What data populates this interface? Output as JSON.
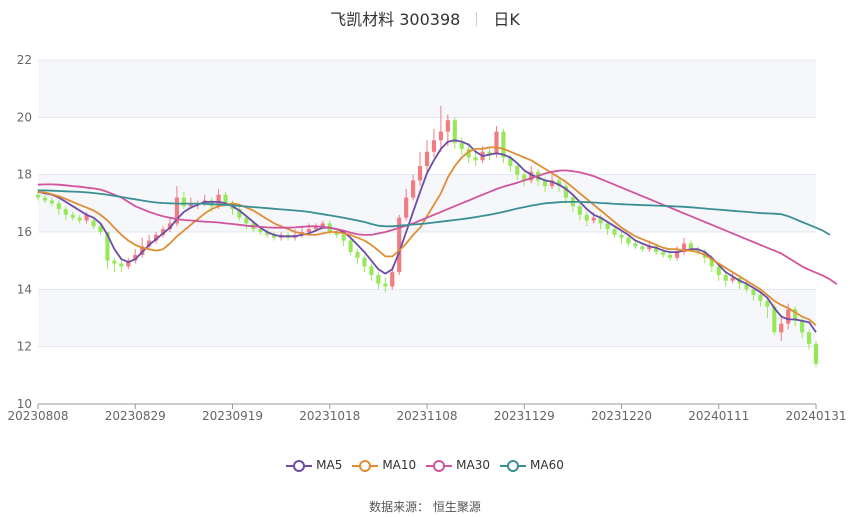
{
  "title": {
    "name": "飞凯材料 300398",
    "period": "日K"
  },
  "source": "数据来源： 恒生聚源",
  "chart_data": {
    "type": "candlestick",
    "y_ticks": [
      "10",
      "12",
      "14",
      "16",
      "18",
      "20",
      "22"
    ],
    "ylim": [
      10,
      22
    ],
    "x_ticks": [
      "20230808",
      "20230829",
      "20230919",
      "20231018",
      "20231108",
      "20231129",
      "20231220",
      "20240111",
      "20240131"
    ],
    "grid": true,
    "legend_position": "bottom",
    "up_color": "#f07c82",
    "down_color": "#96e85a",
    "candles": [
      [
        17.3,
        17.2,
        17.5,
        17.1
      ],
      [
        17.2,
        17.1,
        17.3,
        17.0
      ],
      [
        17.1,
        17.0,
        17.2,
        16.9
      ],
      [
        17.0,
        16.8,
        17.1,
        16.6
      ],
      [
        16.8,
        16.6,
        16.9,
        16.4
      ],
      [
        16.6,
        16.5,
        16.7,
        16.4
      ],
      [
        16.5,
        16.4,
        16.6,
        16.3
      ],
      [
        16.4,
        16.6,
        16.7,
        16.3
      ],
      [
        16.4,
        16.2,
        16.5,
        16.1
      ],
      [
        16.2,
        16.0,
        16.3,
        15.9
      ],
      [
        16.0,
        15.0,
        16.0,
        14.7
      ],
      [
        15.0,
        14.9,
        15.1,
        14.6
      ],
      [
        14.9,
        14.8,
        15.0,
        14.6
      ],
      [
        14.8,
        15.0,
        15.1,
        14.7
      ],
      [
        15.0,
        15.2,
        15.4,
        14.9
      ],
      [
        15.2,
        15.5,
        15.8,
        15.1
      ],
      [
        15.5,
        15.7,
        15.9,
        15.4
      ],
      [
        15.7,
        15.9,
        16.0,
        15.6
      ],
      [
        15.9,
        16.1,
        16.2,
        15.8
      ],
      [
        16.1,
        16.3,
        16.5,
        16.0
      ],
      [
        16.3,
        17.2,
        17.6,
        16.2
      ],
      [
        17.2,
        16.9,
        17.4,
        16.8
      ],
      [
        16.9,
        17.0,
        17.2,
        16.8
      ],
      [
        17.0,
        17.0,
        17.1,
        16.8
      ],
      [
        17.0,
        17.1,
        17.3,
        16.9
      ],
      [
        17.1,
        16.9,
        17.2,
        16.7
      ],
      [
        16.9,
        17.3,
        17.5,
        16.8
      ],
      [
        17.3,
        17.0,
        17.4,
        16.9
      ],
      [
        17.0,
        16.8,
        17.1,
        16.6
      ],
      [
        16.8,
        16.5,
        16.9,
        16.4
      ],
      [
        16.5,
        16.3,
        16.6,
        16.1
      ],
      [
        16.3,
        16.1,
        16.4,
        16.0
      ],
      [
        16.1,
        16.0,
        16.2,
        15.9
      ],
      [
        16.0,
        15.9,
        16.1,
        15.8
      ],
      [
        15.9,
        15.8,
        16.0,
        15.7
      ],
      [
        15.8,
        15.9,
        16.0,
        15.7
      ],
      [
        15.9,
        15.8,
        16.0,
        15.7
      ],
      [
        15.8,
        15.9,
        16.1,
        15.7
      ],
      [
        15.9,
        16.0,
        16.2,
        15.8
      ],
      [
        16.0,
        16.1,
        16.3,
        15.9
      ],
      [
        16.1,
        16.2,
        16.3,
        16.0
      ],
      [
        16.2,
        16.3,
        16.4,
        16.1
      ],
      [
        16.3,
        16.0,
        16.4,
        15.9
      ],
      [
        16.0,
        15.9,
        16.1,
        15.8
      ],
      [
        15.9,
        15.7,
        16.0,
        15.5
      ],
      [
        15.7,
        15.3,
        15.8,
        15.2
      ],
      [
        15.3,
        15.1,
        15.4,
        14.9
      ],
      [
        15.1,
        14.8,
        15.2,
        14.6
      ],
      [
        14.8,
        14.5,
        14.9,
        14.3
      ],
      [
        14.5,
        14.2,
        14.6,
        14.0
      ],
      [
        14.2,
        14.1,
        14.4,
        13.9
      ],
      [
        14.1,
        14.6,
        14.8,
        14.0
      ],
      [
        14.6,
        16.5,
        16.6,
        14.5
      ],
      [
        16.5,
        17.2,
        17.5,
        16.4
      ],
      [
        17.2,
        17.8,
        18.0,
        17.1
      ],
      [
        17.8,
        18.3,
        18.8,
        17.6
      ],
      [
        18.3,
        18.8,
        19.2,
        18.1
      ],
      [
        18.8,
        19.2,
        19.6,
        18.6
      ],
      [
        19.2,
        19.5,
        20.4,
        18.8
      ],
      [
        19.5,
        19.9,
        20.1,
        19.0
      ],
      [
        19.9,
        19.1,
        20.0,
        18.9
      ],
      [
        19.1,
        18.9,
        19.3,
        18.7
      ],
      [
        18.9,
        18.6,
        19.1,
        18.4
      ],
      [
        18.6,
        18.5,
        18.8,
        18.3
      ],
      [
        18.5,
        18.8,
        19.0,
        18.4
      ],
      [
        18.8,
        18.7,
        19.0,
        18.5
      ],
      [
        18.7,
        19.5,
        19.7,
        18.6
      ],
      [
        19.5,
        18.6,
        19.6,
        18.4
      ],
      [
        18.6,
        18.3,
        18.7,
        18.1
      ],
      [
        18.3,
        18.0,
        18.4,
        17.8
      ],
      [
        18.0,
        17.8,
        18.1,
        17.6
      ],
      [
        17.8,
        18.1,
        18.3,
        17.7
      ],
      [
        18.1,
        17.8,
        18.2,
        17.6
      ],
      [
        17.8,
        17.6,
        17.9,
        17.4
      ],
      [
        17.6,
        17.8,
        18.0,
        17.5
      ],
      [
        17.8,
        17.6,
        17.9,
        17.4
      ],
      [
        17.6,
        17.2,
        17.7,
        17.0
      ],
      [
        17.2,
        16.9,
        17.3,
        16.7
      ],
      [
        16.9,
        16.6,
        17.0,
        16.4
      ],
      [
        16.6,
        16.4,
        16.7,
        16.2
      ],
      [
        16.4,
        16.5,
        16.7,
        16.3
      ],
      [
        16.5,
        16.3,
        16.6,
        16.1
      ],
      [
        16.3,
        16.1,
        16.4,
        15.9
      ],
      [
        16.1,
        15.9,
        16.2,
        15.8
      ],
      [
        15.9,
        15.8,
        16.0,
        15.6
      ],
      [
        15.8,
        15.6,
        15.9,
        15.5
      ],
      [
        15.6,
        15.5,
        15.7,
        15.4
      ],
      [
        15.5,
        15.4,
        15.6,
        15.3
      ],
      [
        15.4,
        15.5,
        15.7,
        15.3
      ],
      [
        15.5,
        15.3,
        15.6,
        15.2
      ],
      [
        15.3,
        15.2,
        15.4,
        15.1
      ],
      [
        15.2,
        15.1,
        15.3,
        15.0
      ],
      [
        15.1,
        15.3,
        15.5,
        15.0
      ],
      [
        15.3,
        15.6,
        15.8,
        15.2
      ],
      [
        15.6,
        15.4,
        15.7,
        15.3
      ],
      [
        15.4,
        15.3,
        15.5,
        15.2
      ],
      [
        15.3,
        15.1,
        15.4,
        14.9
      ],
      [
        15.1,
        14.8,
        15.2,
        14.6
      ],
      [
        14.8,
        14.5,
        14.9,
        14.3
      ],
      [
        14.5,
        14.3,
        14.6,
        14.1
      ],
      [
        14.3,
        14.4,
        14.6,
        14.2
      ],
      [
        14.4,
        14.2,
        14.5,
        14.0
      ],
      [
        14.2,
        14.0,
        14.3,
        13.9
      ],
      [
        14.0,
        13.8,
        14.1,
        13.6
      ],
      [
        13.8,
        13.6,
        13.9,
        13.4
      ],
      [
        13.6,
        13.4,
        13.7,
        13.0
      ],
      [
        13.4,
        12.5,
        13.5,
        12.4
      ],
      [
        12.5,
        12.8,
        13.1,
        12.2
      ],
      [
        12.8,
        13.3,
        13.5,
        12.6
      ],
      [
        13.3,
        12.9,
        13.4,
        12.7
      ],
      [
        12.9,
        12.5,
        13.0,
        12.3
      ],
      [
        12.5,
        12.1,
        12.6,
        11.9
      ],
      [
        12.1,
        11.4,
        12.2,
        11.3
      ]
    ],
    "series": [
      {
        "name": "MA5",
        "color": "#6b4ca8",
        "values": [
          17.4,
          17.35,
          17.3,
          17.2,
          17.05,
          16.9,
          16.75,
          16.6,
          16.5,
          16.3,
          15.9,
          15.4,
          15.05,
          14.95,
          15.05,
          15.3,
          15.55,
          15.75,
          15.95,
          16.15,
          16.45,
          16.7,
          16.85,
          16.95,
          17.05,
          17.05,
          17.05,
          17.0,
          16.9,
          16.75,
          16.55,
          16.35,
          16.15,
          16.0,
          15.9,
          15.85,
          15.85,
          15.85,
          15.9,
          15.95,
          16.05,
          16.15,
          16.15,
          16.1,
          16.0,
          15.8,
          15.55,
          15.3,
          15.0,
          14.7,
          14.55,
          14.7,
          15.3,
          16.0,
          16.7,
          17.4,
          18.05,
          18.5,
          18.9,
          19.15,
          19.2,
          19.15,
          19.05,
          18.8,
          18.65,
          18.7,
          18.75,
          18.7,
          18.6,
          18.4,
          18.15,
          18.0,
          17.9,
          17.8,
          17.75,
          17.65,
          17.5,
          17.3,
          17.05,
          16.8,
          16.6,
          16.5,
          16.35,
          16.2,
          16.05,
          15.9,
          15.7,
          15.6,
          15.5,
          15.45,
          15.35,
          15.3,
          15.3,
          15.35,
          15.4,
          15.4,
          15.3,
          15.1,
          14.85,
          14.6,
          14.45,
          14.3,
          14.2,
          14.05,
          13.9,
          13.7,
          13.35,
          13.05,
          12.95,
          12.95,
          12.9,
          12.85,
          12.5
        ]
      },
      {
        "name": "MA10",
        "color": "#e08d34",
        "values": [
          17.4,
          17.38,
          17.32,
          17.25,
          17.15,
          17.05,
          16.95,
          16.85,
          16.75,
          16.6,
          16.4,
          16.15,
          15.9,
          15.7,
          15.55,
          15.45,
          15.4,
          15.35,
          15.4,
          15.6,
          15.85,
          16.05,
          16.25,
          16.45,
          16.65,
          16.8,
          16.9,
          16.95,
          17.0,
          16.95,
          16.85,
          16.75,
          16.6,
          16.45,
          16.3,
          16.2,
          16.1,
          16.0,
          15.95,
          15.9,
          15.9,
          15.95,
          16.0,
          16.0,
          15.95,
          15.9,
          15.8,
          15.7,
          15.55,
          15.35,
          15.15,
          15.15,
          15.35,
          15.6,
          15.9,
          16.15,
          16.55,
          16.95,
          17.35,
          17.9,
          18.3,
          18.6,
          18.8,
          18.9,
          18.9,
          18.95,
          18.95,
          18.9,
          18.8,
          18.7,
          18.6,
          18.5,
          18.35,
          18.2,
          18.05,
          17.9,
          17.75,
          17.55,
          17.35,
          17.15,
          16.95,
          16.75,
          16.55,
          16.35,
          16.15,
          16.0,
          15.85,
          15.75,
          15.65,
          15.55,
          15.45,
          15.4,
          15.4,
          15.35,
          15.35,
          15.3,
          15.2,
          15.05,
          14.9,
          14.75,
          14.6,
          14.45,
          14.3,
          14.15,
          14.0,
          13.8,
          13.6,
          13.45,
          13.35,
          13.2,
          13.05,
          12.95,
          12.75
        ]
      },
      {
        "name": "MA30",
        "color": "#d0559c",
        "values": [
          17.65,
          17.66,
          17.66,
          17.65,
          17.63,
          17.6,
          17.58,
          17.55,
          17.52,
          17.48,
          17.4,
          17.3,
          17.2,
          17.05,
          16.9,
          16.8,
          16.7,
          16.62,
          16.55,
          16.5,
          16.45,
          16.42,
          16.4,
          16.38,
          16.36,
          16.35,
          16.33,
          16.3,
          16.28,
          16.25,
          16.22,
          16.2,
          16.18,
          16.16,
          16.15,
          16.15,
          16.15,
          16.16,
          16.18,
          16.2,
          16.2,
          16.18,
          16.15,
          16.1,
          16.05,
          15.98,
          15.92,
          15.9,
          15.9,
          15.95,
          16.0,
          16.07,
          16.15,
          16.22,
          16.3,
          16.4,
          16.5,
          16.6,
          16.7,
          16.8,
          16.9,
          17.0,
          17.1,
          17.2,
          17.3,
          17.4,
          17.5,
          17.58,
          17.65,
          17.72,
          17.8,
          17.88,
          17.96,
          18.04,
          18.1,
          18.14,
          18.15,
          18.12,
          18.08,
          18.02,
          17.95,
          17.85,
          17.75,
          17.65,
          17.55,
          17.45,
          17.35,
          17.25,
          17.15,
          17.05,
          16.95,
          16.85,
          16.75,
          16.65,
          16.55,
          16.45,
          16.35,
          16.25,
          16.15,
          16.05,
          15.95,
          15.85,
          15.75,
          15.65,
          15.55,
          15.45,
          15.35,
          15.25,
          15.1,
          14.95,
          14.8,
          14.68,
          14.58,
          14.48,
          14.35,
          14.18
        ]
      },
      {
        "name": "MA60",
        "color": "#3a8f93",
        "values": [
          17.45,
          17.45,
          17.44,
          17.43,
          17.42,
          17.41,
          17.4,
          17.38,
          17.36,
          17.33,
          17.3,
          17.26,
          17.22,
          17.18,
          17.14,
          17.1,
          17.06,
          17.03,
          17.01,
          17.0,
          16.99,
          16.99,
          16.99,
          16.99,
          16.98,
          16.97,
          16.96,
          16.95,
          16.93,
          16.91,
          16.89,
          16.87,
          16.85,
          16.83,
          16.81,
          16.79,
          16.77,
          16.75,
          16.73,
          16.7,
          16.66,
          16.62,
          16.58,
          16.54,
          16.5,
          16.45,
          16.4,
          16.35,
          16.28,
          16.22,
          16.2,
          16.2,
          16.22,
          16.24,
          16.26,
          16.28,
          16.3,
          16.33,
          16.36,
          16.39,
          16.42,
          16.45,
          16.48,
          16.52,
          16.56,
          16.6,
          16.65,
          16.7,
          16.76,
          16.82,
          16.87,
          16.92,
          16.96,
          17.0,
          17.02,
          17.04,
          17.05,
          17.05,
          17.05,
          17.04,
          17.03,
          17.01,
          17.0,
          16.98,
          16.97,
          16.96,
          16.95,
          16.94,
          16.93,
          16.92,
          16.91,
          16.9,
          16.89,
          16.88,
          16.86,
          16.84,
          16.82,
          16.8,
          16.78,
          16.76,
          16.74,
          16.72,
          16.7,
          16.68,
          16.66,
          16.65,
          16.64,
          16.62,
          16.55,
          16.45,
          16.35,
          16.25,
          16.15,
          16.05,
          15.9
        ]
      }
    ]
  }
}
